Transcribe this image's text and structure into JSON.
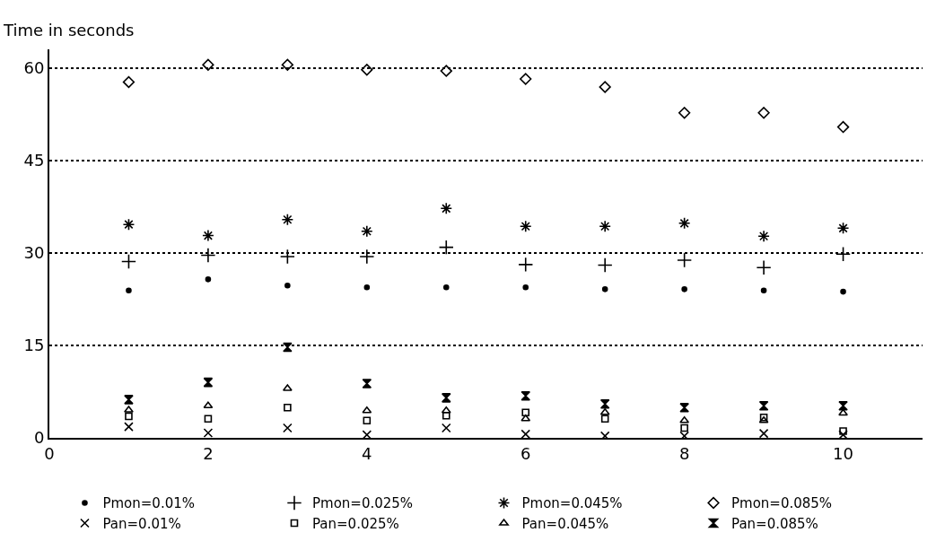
{
  "chart_data": {
    "type": "scatter",
    "ylabel": "Time in seconds",
    "x": [
      1,
      2,
      3,
      4,
      5,
      6,
      7,
      8,
      9,
      10
    ],
    "xlim": [
      0,
      11
    ],
    "xticks": [
      0,
      2,
      4,
      6,
      8,
      10
    ],
    "ylim": [
      0,
      63
    ],
    "yticks": [
      0,
      15,
      30,
      45,
      60
    ],
    "grid": "y",
    "legend": "bottom",
    "series": [
      {
        "name": "Pmon=0.01%",
        "color": "#000000",
        "marker": "circle",
        "values": [
          23.9,
          25.7,
          24.7,
          24.4,
          24.4,
          24.4,
          24.1,
          24.1,
          23.9,
          23.7
        ]
      },
      {
        "name": "Pmon=0.025%",
        "color": "#000000",
        "marker": "cross",
        "values": [
          28.6,
          29.6,
          29.4,
          29.4,
          30.9,
          28.1,
          28.0,
          28.8,
          27.6,
          29.8
        ]
      },
      {
        "name": "Pmon=0.045%",
        "color": "#000000",
        "marker": "cross",
        "values": [
          34.6,
          32.8,
          35.4,
          33.5,
          37.2,
          34.3,
          34.3,
          34.8,
          32.7,
          34.0
        ]
      },
      {
        "name": "Pmon=0.085%",
        "color": "#000000",
        "marker": "diamond",
        "values": [
          57.7,
          60.5,
          60.5,
          59.7,
          59.5,
          58.2,
          56.9,
          52.7,
          52.7,
          50.4
        ]
      },
      {
        "name": "Pan=0.01%",
        "color": "#000000",
        "marker": "x",
        "values": [
          1.8,
          0.8,
          1.6,
          0.5,
          1.6,
          0.6,
          0.3,
          0.3,
          0.7,
          0.5
        ]
      },
      {
        "name": "Pan=0.025%",
        "color": "#000000",
        "marker": "square",
        "values": [
          3.5,
          3.1,
          4.9,
          2.8,
          3.6,
          4.1,
          3.1,
          1.6,
          3.3,
          1.1
        ]
      },
      {
        "name": "Pan=0.045%",
        "color": "#000000",
        "marker": "triangle",
        "values": [
          4.5,
          5.2,
          8.0,
          4.4,
          4.4,
          3.1,
          4.1,
          2.8,
          2.8,
          4.0
        ]
      },
      {
        "name": "Pan=0.085%",
        "color": "#000000",
        "values": [
          6.2,
          9.0,
          14.7,
          8.8,
          6.5,
          6.8,
          5.5,
          4.9,
          5.2,
          5.2
        ]
      }
    ]
  }
}
